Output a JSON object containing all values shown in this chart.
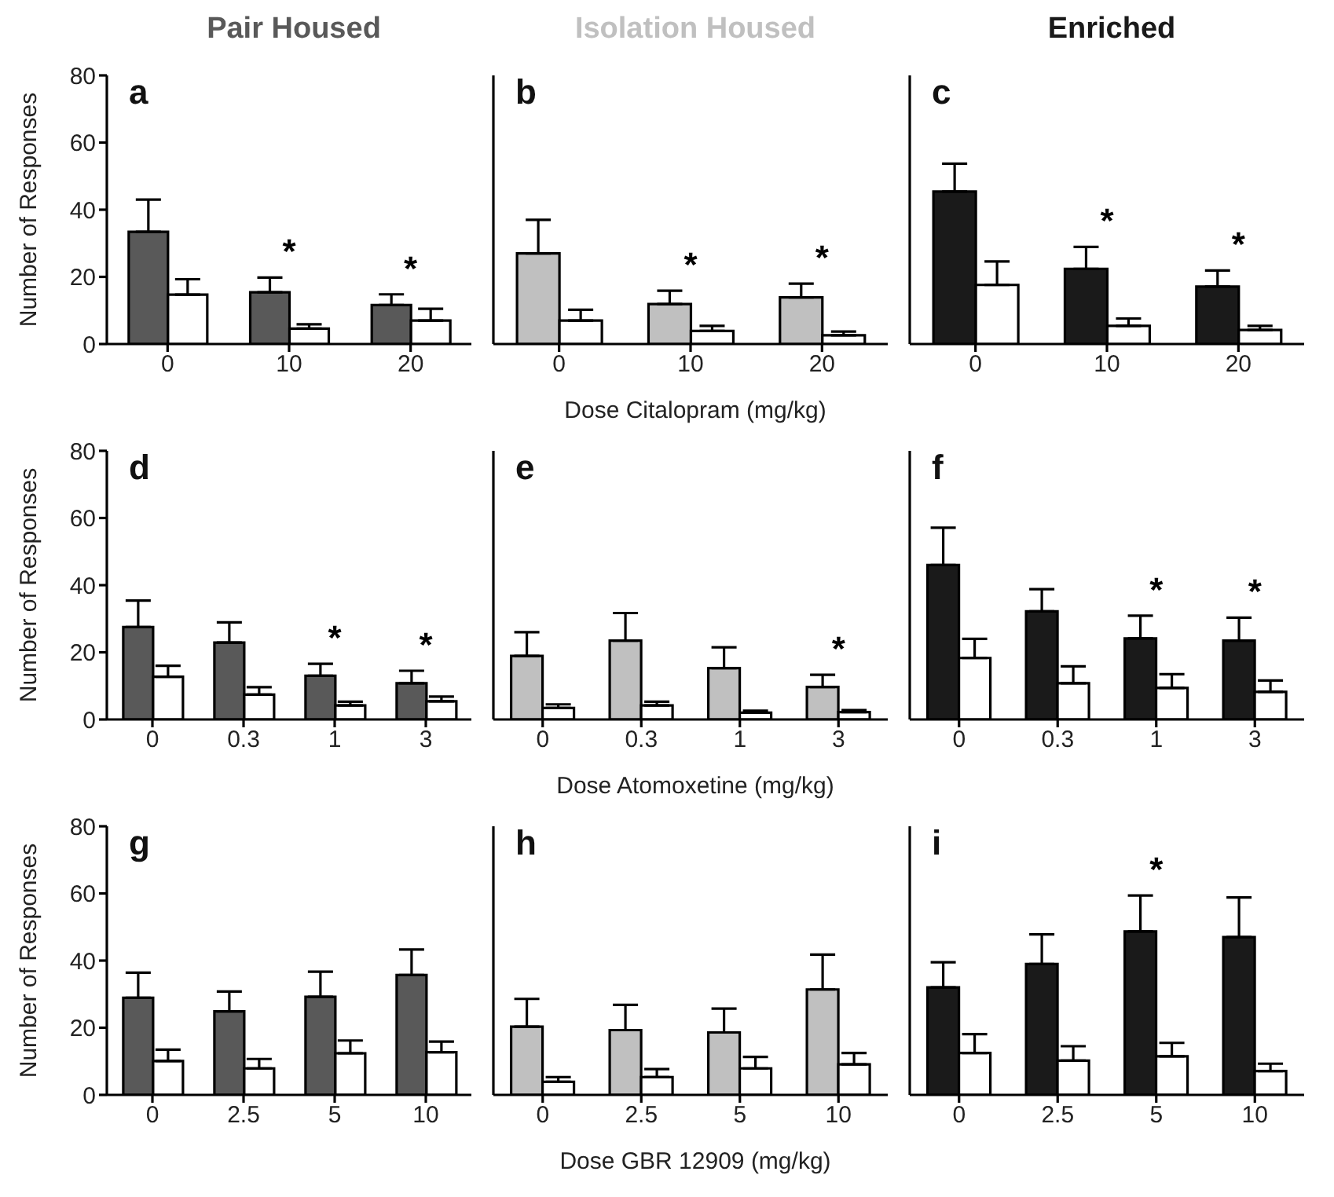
{
  "chart_data": [
    {
      "type": "bar",
      "title": "Pair Housed",
      "ylabel": "Number of Responses",
      "categories": [
        "0",
        "10",
        "20"
      ],
      "ylim": [
        0,
        80
      ],
      "yticks": [
        0,
        20,
        40,
        60,
        80
      ],
      "annotations": [
        "a",
        {
          "text": "*",
          "x": "10",
          "y": 19.8
        },
        {
          "text": "*",
          "x": "20",
          "y": 14.8
        }
      ],
      "series": [
        {
          "color": "#595959",
          "values": [
            33.4,
            15.4,
            11.6
          ],
          "errors": [
            [
              33.4,
              43
            ],
            [
              15.4,
              19.8
            ],
            [
              11.6,
              14.8
            ]
          ]
        },
        {
          "color": "#ffffff",
          "values": [
            14.7,
            4.6,
            7
          ],
          "errors": [
            [
              14.7,
              19.3
            ],
            [
              4.6,
              5.9
            ],
            [
              7,
              10.5
            ]
          ]
        }
      ]
    },
    {
      "type": "bar",
      "title": "Isolation Housed",
      "xlabel": "Dose Citalopram (mg/kg)",
      "categories": [
        "0",
        "10",
        "20"
      ],
      "ylim": [
        0,
        80
      ],
      "yticks": [
        0,
        20,
        40,
        60,
        80
      ],
      "tick_labels": "x",
      "annotations": [
        "b",
        {
          "text": "*",
          "x": "10",
          "y": 11.9
        },
        {
          "text": "*",
          "x": "20",
          "y": 13.9
        }
      ],
      "series": [
        {
          "color": "#c0c0c0",
          "values": [
            27,
            11.9,
            13.9
          ],
          "errors": [
            [
              27,
              37
            ],
            [
              11.9,
              15.9
            ],
            [
              13.9,
              18
            ]
          ]
        },
        {
          "color": "#ffffff",
          "values": [
            7,
            3.9,
            2.6
          ],
          "errors": [
            [
              7,
              10.2
            ],
            [
              3.9,
              5.4
            ],
            [
              2.6,
              3.7
            ]
          ]
        }
      ]
    },
    {
      "type": "bar",
      "title": "Enriched",
      "categories": [
        "0",
        "10",
        "20"
      ],
      "ylim": [
        0,
        80
      ],
      "yticks": [
        0,
        20,
        40,
        60,
        80
      ],
      "tick_labels": "x",
      "annotations": [
        "c",
        {
          "text": "*",
          "x": "10",
          "y": 22.4
        },
        {
          "text": "*",
          "x": "20",
          "y": 17.1
        }
      ],
      "series": [
        {
          "color": "#1a1a1a",
          "values": [
            45.4,
            22.4,
            17.1
          ],
          "errors": [
            [
              45.4,
              53.7
            ],
            [
              22.4,
              28.9
            ],
            [
              17.1,
              21.9
            ]
          ]
        },
        {
          "color": "#ffffff",
          "values": [
            17.6,
            5.4,
            4.2
          ],
          "errors": [
            [
              17.6,
              24.6
            ],
            [
              5.4,
              7.6
            ],
            [
              4.2,
              5.4
            ]
          ]
        }
      ]
    },
    {
      "type": "bar",
      "ylabel": "Number of Responses",
      "categories": [
        "0",
        "0.3",
        "1",
        "3"
      ],
      "ylim": [
        0,
        80
      ],
      "yticks": [
        0,
        20,
        40,
        60,
        80
      ],
      "annotations": [
        "d",
        {
          "text": "*",
          "x": "1",
          "y": 16.6
        },
        {
          "text": "*",
          "x": "3",
          "y": 14.5
        }
      ],
      "series": [
        {
          "color": "#595959",
          "values": [
            27.5,
            22.9,
            13,
            10.8
          ],
          "errors": [
            [
              27.5,
              35.4
            ],
            [
              22.9,
              28.9
            ],
            [
              13,
              16.6
            ],
            [
              10.8,
              14.5
            ]
          ]
        },
        {
          "color": "#ffffff",
          "values": [
            12.7,
            7.4,
            4.2,
            5.4
          ],
          "errors": [
            [
              12.7,
              16
            ],
            [
              7.4,
              9.6
            ],
            [
              4.2,
              5.3
            ],
            [
              5.4,
              6.8
            ]
          ]
        }
      ]
    },
    {
      "type": "bar",
      "xlabel": "Dose Atomoxetine (mg/kg)",
      "categories": [
        "0",
        "0.3",
        "1",
        "3"
      ],
      "ylim": [
        0,
        80
      ],
      "yticks": [
        0,
        20,
        40,
        60,
        80
      ],
      "tick_labels": "x",
      "annotations": [
        "e",
        {
          "text": "*",
          "x": "3",
          "y": 13.3
        }
      ],
      "series": [
        {
          "color": "#c0c0c0",
          "values": [
            18.9,
            23.5,
            15.3,
            9.7
          ],
          "errors": [
            [
              18.9,
              26
            ],
            [
              23.5,
              31.7
            ],
            [
              15.3,
              21.5
            ],
            [
              9.7,
              13.3
            ]
          ]
        },
        {
          "color": "#ffffff",
          "values": [
            3.4,
            4.2,
            2,
            2.2
          ],
          "errors": [
            [
              3.4,
              4.5
            ],
            [
              4.2,
              5.3
            ],
            [
              2,
              2.6
            ],
            [
              2.2,
              2.8
            ]
          ]
        }
      ]
    },
    {
      "type": "bar",
      "categories": [
        "0",
        "0.3",
        "1",
        "3"
      ],
      "ylim": [
        0,
        80
      ],
      "yticks": [
        0,
        20,
        40,
        60,
        80
      ],
      "tick_labels": "x",
      "annotations": [
        "f",
        {
          "text": "*",
          "x": "1",
          "y": 30.9
        },
        {
          "text": "*",
          "x": "3",
          "y": 30.3
        }
      ],
      "series": [
        {
          "color": "#1a1a1a",
          "values": [
            46,
            32.2,
            24.1,
            23.5
          ],
          "errors": [
            [
              46,
              57.1
            ],
            [
              32.2,
              38.8
            ],
            [
              24.1,
              30.9
            ],
            [
              23.5,
              30.3
            ]
          ]
        },
        {
          "color": "#ffffff",
          "values": [
            18.3,
            10.8,
            9.4,
            8.2
          ],
          "errors": [
            [
              18.3,
              24
            ],
            [
              10.8,
              15.8
            ],
            [
              9.4,
              13.5
            ],
            [
              8.2,
              11.6
            ]
          ]
        }
      ]
    },
    {
      "type": "bar",
      "ylabel": "Number of Responses",
      "categories": [
        "0",
        "2.5",
        "5",
        "10"
      ],
      "ylim": [
        0,
        80
      ],
      "yticks": [
        0,
        20,
        40,
        60,
        80
      ],
      "annotations": [
        "g"
      ],
      "series": [
        {
          "color": "#595959",
          "values": [
            28.9,
            24.9,
            29.2,
            35.7
          ],
          "errors": [
            [
              28.9,
              36.4
            ],
            [
              24.9,
              30.8
            ],
            [
              29.2,
              36.7
            ],
            [
              35.7,
              43.3
            ]
          ]
        },
        {
          "color": "#ffffff",
          "values": [
            10.1,
            7.9,
            12.4,
            12.7
          ],
          "errors": [
            [
              10.1,
              13.5
            ],
            [
              7.9,
              10.7
            ],
            [
              12.4,
              16.2
            ],
            [
              12.7,
              15.9
            ]
          ]
        }
      ]
    },
    {
      "type": "bar",
      "xlabel": "Dose GBR 12909 (mg/kg)",
      "categories": [
        "0",
        "2.5",
        "5",
        "10"
      ],
      "ylim": [
        0,
        80
      ],
      "yticks": [
        0,
        20,
        40,
        60,
        80
      ],
      "tick_labels": "x",
      "annotations": [
        "h"
      ],
      "series": [
        {
          "color": "#c0c0c0",
          "values": [
            20.3,
            19.3,
            18.6,
            31.4
          ],
          "errors": [
            [
              20.3,
              28.6
            ],
            [
              19.3,
              26.8
            ],
            [
              18.6,
              25.7
            ],
            [
              31.4,
              41.8
            ]
          ]
        },
        {
          "color": "#ffffff",
          "values": [
            3.9,
            5.3,
            7.9,
            9.1
          ],
          "errors": [
            [
              3.9,
              5.3
            ],
            [
              5.3,
              7.7
            ],
            [
              7.9,
              11.3
            ],
            [
              9.1,
              12.5
            ]
          ]
        }
      ]
    },
    {
      "type": "bar",
      "categories": [
        "0",
        "2.5",
        "5",
        "10"
      ],
      "ylim": [
        0,
        80
      ],
      "yticks": [
        0,
        20,
        40,
        60,
        80
      ],
      "tick_labels": "x",
      "annotations": [
        "i",
        {
          "text": "*",
          "x": "5",
          "y": 59.4
        }
      ],
      "series": [
        {
          "color": "#1a1a1a",
          "values": [
            32,
            39,
            48.7,
            47
          ],
          "errors": [
            [
              32,
              39.5
            ],
            [
              39,
              47.8
            ],
            [
              48.7,
              59.4
            ],
            [
              47,
              58.8
            ]
          ]
        },
        {
          "color": "#ffffff",
          "values": [
            12.5,
            10.2,
            11.5,
            7.1
          ],
          "errors": [
            [
              12.5,
              18.1
            ],
            [
              10.2,
              14.5
            ],
            [
              11.5,
              15.5
            ],
            [
              7.1,
              9.3
            ]
          ]
        }
      ]
    }
  ]
}
